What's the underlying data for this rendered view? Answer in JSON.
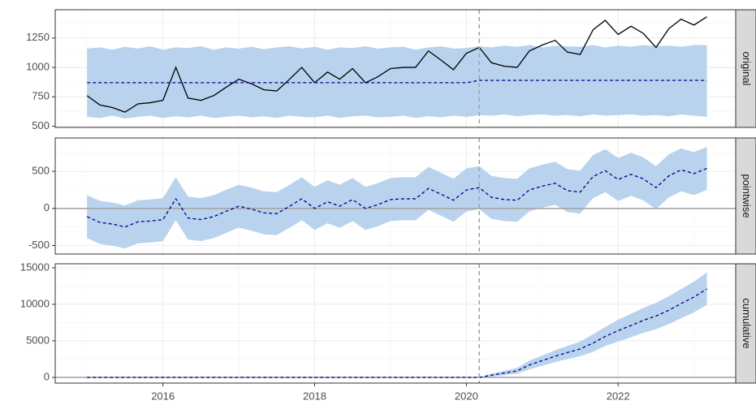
{
  "chart_data": [
    {
      "type": "line",
      "strip": "original",
      "intervention": 2020.17,
      "x": [
        2015.0,
        2015.17,
        2015.33,
        2015.5,
        2015.67,
        2015.83,
        2016.0,
        2016.17,
        2016.33,
        2016.5,
        2016.67,
        2016.83,
        2017.0,
        2017.17,
        2017.33,
        2017.5,
        2017.67,
        2017.83,
        2018.0,
        2018.17,
        2018.33,
        2018.5,
        2018.67,
        2018.83,
        2019.0,
        2019.17,
        2019.33,
        2019.5,
        2019.67,
        2019.83,
        2020.0,
        2020.17,
        2020.33,
        2020.5,
        2020.67,
        2020.83,
        2021.0,
        2021.17,
        2021.33,
        2021.5,
        2021.67,
        2021.83,
        2022.0,
        2022.17,
        2022.33,
        2022.5,
        2022.67,
        2022.83,
        2023.0,
        2023.17
      ],
      "ylim": [
        490,
        1490
      ],
      "yticks": [
        500,
        750,
        1000,
        1250
      ],
      "band": {
        "color": "#b9d3ee",
        "lower": [
          580,
          570,
          590,
          565,
          580,
          590,
          570,
          585,
          575,
          590,
          570,
          580,
          590,
          575,
          585,
          570,
          590,
          580,
          575,
          590,
          570,
          585,
          590,
          575,
          580,
          590,
          570,
          585,
          575,
          590,
          580,
          595,
          590,
          600,
          585,
          595,
          600,
          590,
          595,
          585,
          600,
          590,
          595,
          600,
          590,
          595,
          585,
          600,
          590,
          580
        ],
        "upper": [
          1160,
          1170,
          1150,
          1175,
          1160,
          1180,
          1150,
          1170,
          1165,
          1180,
          1150,
          1170,
          1160,
          1175,
          1155,
          1170,
          1180,
          1160,
          1175,
          1150,
          1170,
          1165,
          1180,
          1160,
          1170,
          1175,
          1150,
          1170,
          1180,
          1160,
          1165,
          1180,
          1170,
          1185,
          1175,
          1190,
          1170,
          1185,
          1180,
          1175,
          1190,
          1170,
          1185,
          1175,
          1190,
          1180,
          1185,
          1175,
          1190,
          1190
        ]
      },
      "series": [
        {
          "color": "#000000",
          "dash": false,
          "values": [
            760,
            680,
            660,
            620,
            690,
            700,
            720,
            1000,
            740,
            720,
            760,
            830,
            900,
            860,
            810,
            800,
            900,
            1000,
            870,
            960,
            900,
            990,
            870,
            920,
            990,
            1000,
            1000,
            1140,
            1060,
            980,
            1120,
            1170,
            1040,
            1010,
            1000,
            1140,
            1190,
            1230,
            1130,
            1110,
            1320,
            1400,
            1280,
            1350,
            1290,
            1170,
            1330,
            1410,
            1360,
            1430
          ]
        },
        {
          "color": "#00008b",
          "dash": true,
          "values": [
            870,
            870,
            870,
            870,
            870,
            870,
            870,
            870,
            870,
            870,
            870,
            870,
            870,
            870,
            870,
            870,
            870,
            870,
            870,
            870,
            870,
            870,
            870,
            870,
            870,
            870,
            870,
            870,
            870,
            870,
            870,
            890,
            890,
            890,
            890,
            890,
            890,
            890,
            890,
            890,
            890,
            890,
            890,
            890,
            890,
            890,
            890,
            890,
            890,
            890
          ]
        }
      ]
    },
    {
      "type": "line",
      "strip": "pointwise",
      "intervention": 2020.17,
      "hline": 0,
      "x": [
        2015.0,
        2015.17,
        2015.33,
        2015.5,
        2015.67,
        2015.83,
        2016.0,
        2016.17,
        2016.33,
        2016.5,
        2016.67,
        2016.83,
        2017.0,
        2017.17,
        2017.33,
        2017.5,
        2017.67,
        2017.83,
        2018.0,
        2018.17,
        2018.33,
        2018.5,
        2018.67,
        2018.83,
        2019.0,
        2019.17,
        2019.33,
        2019.5,
        2019.67,
        2019.83,
        2020.0,
        2020.17,
        2020.33,
        2020.5,
        2020.67,
        2020.83,
        2021.0,
        2021.17,
        2021.33,
        2021.5,
        2021.67,
        2021.83,
        2022.0,
        2022.17,
        2022.33,
        2022.5,
        2022.67,
        2022.83,
        2023.0,
        2023.17
      ],
      "ylim": [
        -615,
        950
      ],
      "yticks": [
        -500,
        0,
        500
      ],
      "band": {
        "color": "#b9d3ee",
        "lower": [
          -400,
          -480,
          -500,
          -540,
          -470,
          -460,
          -440,
          -160,
          -420,
          -440,
          -400,
          -330,
          -260,
          -300,
          -350,
          -360,
          -260,
          -160,
          -290,
          -200,
          -260,
          -170,
          -290,
          -240,
          -170,
          -160,
          -160,
          -20,
          -100,
          -180,
          -40,
          -10,
          -140,
          -170,
          -180,
          -40,
          10,
          50,
          -50,
          -70,
          140,
          220,
          100,
          170,
          110,
          -10,
          150,
          230,
          180,
          250
        ],
        "upper": [
          180,
          100,
          80,
          40,
          110,
          120,
          140,
          420,
          160,
          140,
          180,
          250,
          320,
          280,
          230,
          220,
          320,
          420,
          290,
          380,
          320,
          410,
          290,
          340,
          410,
          420,
          420,
          560,
          480,
          400,
          540,
          570,
          440,
          410,
          400,
          540,
          590,
          630,
          530,
          510,
          720,
          800,
          680,
          750,
          690,
          570,
          730,
          810,
          760,
          830
        ]
      },
      "series": [
        {
          "color": "#00008b",
          "dash": true,
          "values": [
            -110,
            -190,
            -210,
            -250,
            -180,
            -170,
            -150,
            130,
            -130,
            -150,
            -110,
            -40,
            30,
            -10,
            -60,
            -70,
            30,
            130,
            0,
            90,
            30,
            120,
            0,
            50,
            120,
            130,
            130,
            270,
            190,
            110,
            250,
            280,
            150,
            120,
            110,
            250,
            300,
            340,
            240,
            220,
            430,
            510,
            390,
            460,
            400,
            280,
            440,
            520,
            470,
            540
          ]
        }
      ]
    },
    {
      "type": "line",
      "strip": "cumulative",
      "intervention": 2020.17,
      "hline": 0,
      "x": [
        2015.0,
        2015.17,
        2015.33,
        2015.5,
        2015.67,
        2015.83,
        2016.0,
        2016.17,
        2016.33,
        2016.5,
        2016.67,
        2016.83,
        2017.0,
        2017.17,
        2017.33,
        2017.5,
        2017.67,
        2017.83,
        2018.0,
        2018.17,
        2018.33,
        2018.5,
        2018.67,
        2018.83,
        2019.0,
        2019.17,
        2019.33,
        2019.5,
        2019.67,
        2019.83,
        2020.0,
        2020.17,
        2020.33,
        2020.5,
        2020.67,
        2020.83,
        2021.0,
        2021.17,
        2021.33,
        2021.5,
        2021.67,
        2021.83,
        2022.0,
        2022.17,
        2022.33,
        2022.5,
        2022.67,
        2022.83,
        2023.0,
        2023.17
      ],
      "ylim": [
        -780,
        15550
      ],
      "yticks": [
        0,
        5000,
        10000,
        15000
      ],
      "xlim": [
        2014.58,
        2023.55
      ],
      "xticks": [
        2016,
        2018,
        2020,
        2022
      ],
      "band": {
        "color": "#b9d3ee",
        "lower": [
          null,
          null,
          null,
          null,
          null,
          null,
          null,
          null,
          null,
          null,
          null,
          null,
          null,
          null,
          null,
          null,
          null,
          null,
          null,
          null,
          null,
          null,
          null,
          null,
          null,
          null,
          null,
          null,
          null,
          null,
          null,
          0,
          100,
          300,
          500,
          1100,
          1600,
          2100,
          2500,
          2900,
          3500,
          4300,
          4900,
          5500,
          6100,
          6600,
          7300,
          8100,
          8900,
          9900
        ],
        "upper": [
          null,
          null,
          null,
          null,
          null,
          null,
          null,
          null,
          null,
          null,
          null,
          null,
          null,
          null,
          null,
          null,
          null,
          null,
          null,
          null,
          null,
          null,
          null,
          null,
          null,
          null,
          null,
          null,
          null,
          null,
          null,
          0,
          500,
          900,
          1300,
          2300,
          3000,
          3700,
          4300,
          4900,
          5900,
          6900,
          7900,
          8700,
          9500,
          10200,
          11100,
          12100,
          13100,
          14400
        ]
      },
      "series": [
        {
          "color": "#00008b",
          "dash": true,
          "values": [
            0,
            0,
            0,
            0,
            0,
            0,
            0,
            0,
            0,
            0,
            0,
            0,
            0,
            0,
            0,
            0,
            0,
            0,
            0,
            0,
            0,
            0,
            0,
            0,
            0,
            0,
            0,
            0,
            0,
            0,
            0,
            0,
            300,
            600,
            900,
            1700,
            2300,
            2900,
            3400,
            3900,
            4700,
            5600,
            6400,
            7100,
            7800,
            8400,
            9200,
            10100,
            11000,
            12100
          ]
        }
      ]
    }
  ]
}
